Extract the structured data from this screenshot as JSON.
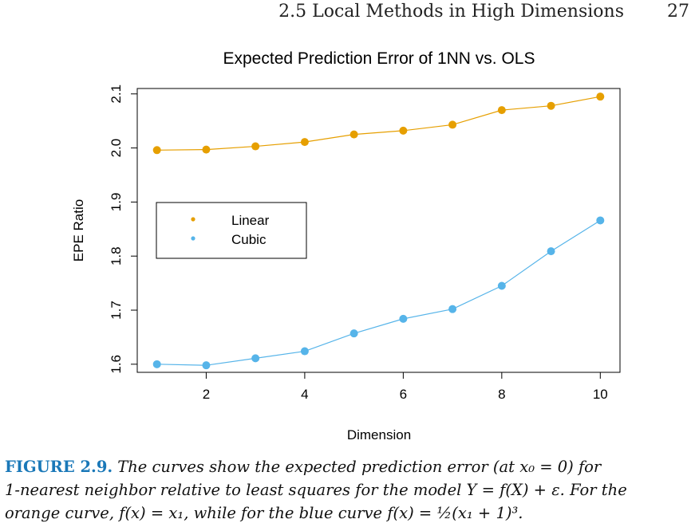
{
  "header": {
    "section": "2.5 Local Methods in High Dimensions",
    "page_number": "27"
  },
  "chart_data": {
    "type": "line",
    "title": "Expected Prediction Error of 1NN vs. OLS",
    "xlabel": "Dimension",
    "ylabel": "EPE Ratio",
    "xlim": [
      0.6,
      10.4
    ],
    "ylim": [
      1.585,
      2.11
    ],
    "xticks": [
      2,
      4,
      6,
      8,
      10
    ],
    "yticks": [
      1.6,
      1.7,
      1.8,
      1.9,
      2.0,
      2.1
    ],
    "xtick_labels": [
      "2",
      "4",
      "6",
      "8",
      "10"
    ],
    "ytick_labels": [
      "1.6",
      "1.7",
      "1.8",
      "1.9",
      "2.0",
      "2.1"
    ],
    "x": [
      1,
      2,
      3,
      4,
      5,
      6,
      7,
      8,
      9,
      10
    ],
    "series": [
      {
        "name": "Linear",
        "color": "#e69f00",
        "values": [
          1.996,
          1.997,
          2.003,
          2.011,
          2.025,
          2.032,
          2.043,
          2.07,
          2.078,
          2.095
        ]
      },
      {
        "name": "Cubic",
        "color": "#56b4e9",
        "values": [
          1.6,
          1.598,
          1.611,
          1.624,
          1.657,
          1.684,
          1.702,
          1.745,
          1.809,
          1.866
        ]
      }
    ],
    "legend_position": "center-left",
    "grid": false
  },
  "caption": {
    "label": "FIGURE 2.9.",
    "line1": "The curves show the expected prediction error (at x₀ = 0) for",
    "line2": "1-nearest neighbor relative to least squares for the model Y = f(X) + ε. For the",
    "line3": "orange curve, f(x) = x₁, while for the blue curve f(x) = ½(x₁ + 1)³."
  }
}
